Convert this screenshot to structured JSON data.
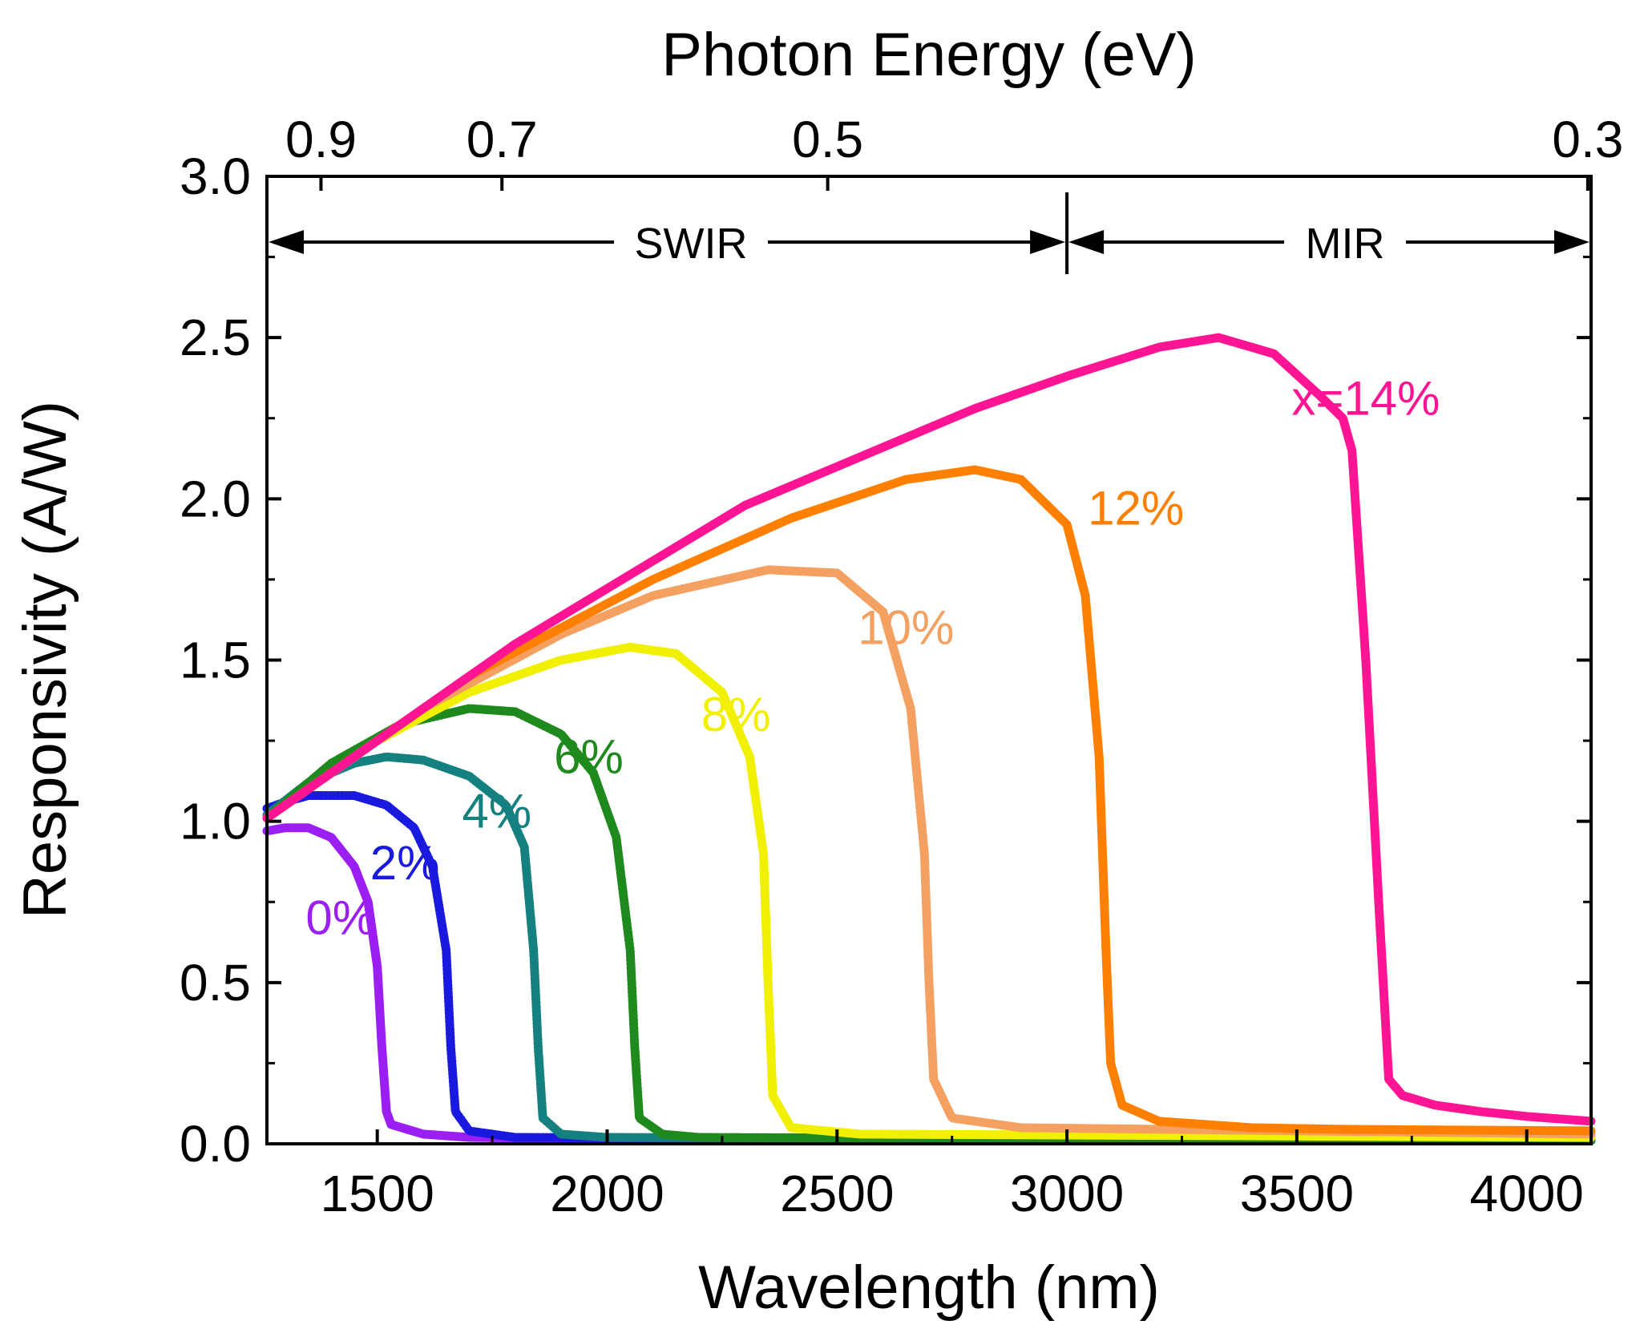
{
  "chart_data": {
    "type": "line",
    "xlabel": "Wavelength (nm)",
    "ylabel": "Responsivity (A/W)",
    "top_axis_label": "Photon Energy (eV)",
    "xlim": [
      1260,
      4140
    ],
    "ylim": [
      0,
      3.0
    ],
    "x_ticks": [
      1500,
      2000,
      2500,
      3000,
      3500,
      4000
    ],
    "y_ticks": [
      0.0,
      0.5,
      1.0,
      1.5,
      2.0,
      2.5,
      3.0
    ],
    "y_tick_labels": [
      "0.0",
      "0.5",
      "1.0",
      "1.5",
      "2.0",
      "2.5",
      "3.0"
    ],
    "top_ticks": [
      {
        "energy": 0.9,
        "label": "0.9"
      },
      {
        "energy": 0.7,
        "label": "0.7"
      },
      {
        "energy": 0.5,
        "label": "0.5"
      },
      {
        "energy": 0.3,
        "label": "0.3"
      }
    ],
    "regions": [
      {
        "label": "SWIR",
        "from": 1260,
        "to": 3000
      },
      {
        "label": "MIR",
        "from": 3000,
        "to": 4140
      }
    ],
    "grid": false,
    "series": [
      {
        "label": "0%",
        "color": "#9b1ff2",
        "style": "solid",
        "points": [
          [
            1260,
            0.97
          ],
          [
            1300,
            0.98
          ],
          [
            1350,
            0.98
          ],
          [
            1400,
            0.95
          ],
          [
            1450,
            0.86
          ],
          [
            1480,
            0.75
          ],
          [
            1500,
            0.55
          ],
          [
            1510,
            0.3
          ],
          [
            1520,
            0.1
          ],
          [
            1530,
            0.06
          ],
          [
            1600,
            0.03
          ],
          [
            1700,
            0.02
          ],
          [
            2000,
            0.015
          ],
          [
            4140,
            0.01
          ]
        ],
        "label_x": 1420,
        "label_y": 0.65
      },
      {
        "label": "2%",
        "color": "#1a1adf",
        "style": "hatched",
        "points": [
          [
            1260,
            1.04
          ],
          [
            1300,
            1.06
          ],
          [
            1350,
            1.08
          ],
          [
            1450,
            1.08
          ],
          [
            1520,
            1.05
          ],
          [
            1580,
            0.98
          ],
          [
            1620,
            0.86
          ],
          [
            1650,
            0.6
          ],
          [
            1660,
            0.3
          ],
          [
            1670,
            0.1
          ],
          [
            1700,
            0.04
          ],
          [
            1800,
            0.02
          ],
          [
            4140,
            0.01
          ]
        ],
        "label_x": 1560,
        "label_y": 0.82
      },
      {
        "label": "4%",
        "color": "#158080",
        "style": "hatched",
        "points": [
          [
            1260,
            1.02
          ],
          [
            1350,
            1.12
          ],
          [
            1450,
            1.18
          ],
          [
            1520,
            1.2
          ],
          [
            1600,
            1.19
          ],
          [
            1700,
            1.14
          ],
          [
            1780,
            1.05
          ],
          [
            1820,
            0.92
          ],
          [
            1840,
            0.6
          ],
          [
            1850,
            0.3
          ],
          [
            1860,
            0.08
          ],
          [
            1900,
            0.03
          ],
          [
            2000,
            0.02
          ],
          [
            4140,
            0.01
          ]
        ],
        "label_x": 1760,
        "label_y": 0.98
      },
      {
        "label": "6%",
        "color": "#1e8a1e",
        "style": "hatched",
        "points": [
          [
            1260,
            1.01
          ],
          [
            1400,
            1.18
          ],
          [
            1550,
            1.3
          ],
          [
            1700,
            1.35
          ],
          [
            1800,
            1.34
          ],
          [
            1900,
            1.27
          ],
          [
            1970,
            1.15
          ],
          [
            2020,
            0.95
          ],
          [
            2050,
            0.6
          ],
          [
            2060,
            0.3
          ],
          [
            2070,
            0.08
          ],
          [
            2120,
            0.03
          ],
          [
            2200,
            0.02
          ],
          [
            4140,
            0.01
          ]
        ],
        "label_x": 1960,
        "label_y": 1.15
      },
      {
        "label": "8%",
        "color": "#f0f000",
        "style": "solid",
        "points": [
          [
            1260,
            1.01
          ],
          [
            1500,
            1.25
          ],
          [
            1700,
            1.4
          ],
          [
            1900,
            1.5
          ],
          [
            2050,
            1.54
          ],
          [
            2150,
            1.52
          ],
          [
            2250,
            1.4
          ],
          [
            2310,
            1.2
          ],
          [
            2340,
            0.9
          ],
          [
            2350,
            0.5
          ],
          [
            2360,
            0.15
          ],
          [
            2400,
            0.05
          ],
          [
            2550,
            0.03
          ],
          [
            4140,
            0.02
          ]
        ],
        "label_x": 2280,
        "label_y": 1.28
      },
      {
        "label": "10%",
        "color": "#f4a060",
        "style": "hatched",
        "points": [
          [
            1260,
            1.01
          ],
          [
            1600,
            1.35
          ],
          [
            1900,
            1.58
          ],
          [
            2100,
            1.7
          ],
          [
            2350,
            1.78
          ],
          [
            2500,
            1.77
          ],
          [
            2600,
            1.65
          ],
          [
            2660,
            1.35
          ],
          [
            2690,
            0.9
          ],
          [
            2700,
            0.5
          ],
          [
            2710,
            0.2
          ],
          [
            2750,
            0.08
          ],
          [
            2900,
            0.05
          ],
          [
            4140,
            0.03
          ]
        ],
        "label_x": 2650,
        "label_y": 1.55
      },
      {
        "label": "12%",
        "color": "#ff7f00",
        "style": "solid",
        "points": [
          [
            1260,
            1.01
          ],
          [
            1700,
            1.45
          ],
          [
            2100,
            1.75
          ],
          [
            2400,
            1.94
          ],
          [
            2650,
            2.06
          ],
          [
            2800,
            2.09
          ],
          [
            2900,
            2.06
          ],
          [
            3000,
            1.92
          ],
          [
            3040,
            1.7
          ],
          [
            3070,
            1.2
          ],
          [
            3085,
            0.6
          ],
          [
            3095,
            0.25
          ],
          [
            3120,
            0.12
          ],
          [
            3200,
            0.07
          ],
          [
            3400,
            0.05
          ],
          [
            3600,
            0.045
          ],
          [
            4140,
            0.04
          ]
        ],
        "label_x": 3150,
        "label_y": 1.92
      },
      {
        "label": "x=14%",
        "color": "#ff1493",
        "style": "solid",
        "points": [
          [
            1260,
            1.01
          ],
          [
            1800,
            1.55
          ],
          [
            2300,
            1.98
          ],
          [
            2800,
            2.28
          ],
          [
            3000,
            2.38
          ],
          [
            3200,
            2.47
          ],
          [
            3330,
            2.5
          ],
          [
            3450,
            2.45
          ],
          [
            3550,
            2.32
          ],
          [
            3600,
            2.25
          ],
          [
            3620,
            2.15
          ],
          [
            3650,
            1.5
          ],
          [
            3680,
            0.7
          ],
          [
            3700,
            0.2
          ],
          [
            3730,
            0.15
          ],
          [
            3800,
            0.12
          ],
          [
            3900,
            0.1
          ],
          [
            4000,
            0.085
          ],
          [
            4140,
            0.07
          ]
        ],
        "label_x": 3650,
        "label_y": 2.26
      }
    ]
  }
}
